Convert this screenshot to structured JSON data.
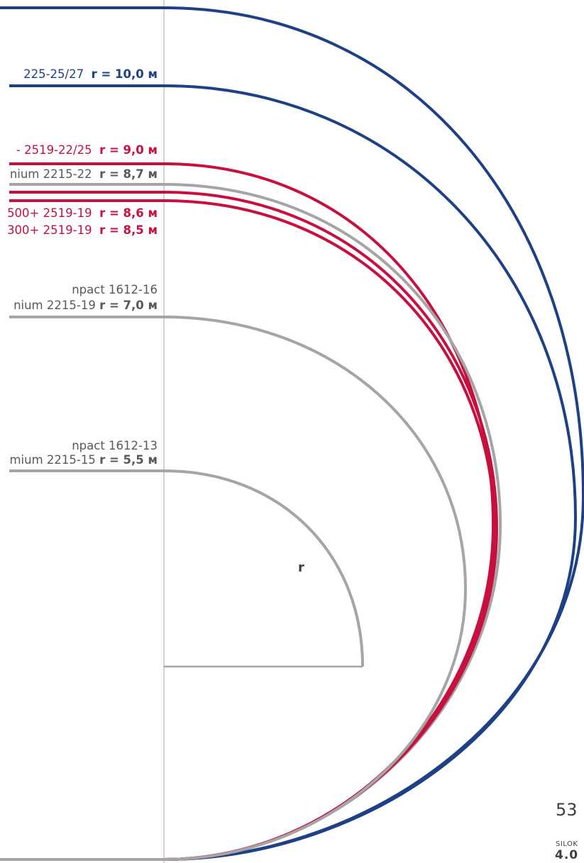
{
  "colors": {
    "navy": "#1e4185",
    "red": "#c8103f",
    "gray": "#a5a5a5",
    "text_gray": "#555a5e"
  },
  "curves": [
    {
      "name": "curve-navy-top",
      "color": "navy",
      "radius_label": ""
    },
    {
      "name": "curve-navy-10-0",
      "color": "navy",
      "radius_label": "10,0 м"
    },
    {
      "name": "curve-red-9-0",
      "color": "red",
      "radius_label": "9,0 м"
    },
    {
      "name": "curve-gray-8-7",
      "color": "gray",
      "radius_label": "8,7 м"
    },
    {
      "name": "curve-red-8-6",
      "color": "red",
      "radius_label": "8,6 м"
    },
    {
      "name": "curve-red-8-5",
      "color": "red",
      "radius_label": "8,5 м"
    },
    {
      "name": "curve-gray-7-0",
      "color": "gray",
      "radius_label": "7,0 м"
    },
    {
      "name": "curve-gray-5-5",
      "color": "gray",
      "radius_label": "5,5 м"
    }
  ],
  "labels": {
    "l1": {
      "model": "225-25/27",
      "prefix": "r = ",
      "value": "10,0 м"
    },
    "l2": {
      "model": "- 2519-22/25",
      "prefix": "r = ",
      "value": "9,0 м"
    },
    "l3": {
      "model": "nium 2215-22",
      "prefix": "r = ",
      "value": "8,7 м"
    },
    "l4": {
      "model": "500+ 2519-19",
      "prefix": "r = ",
      "value": "8,6 м"
    },
    "l5": {
      "model": "300+ 2519-19",
      "prefix": "r = ",
      "value": "8,5 м"
    },
    "l6a": {
      "model": "npact 1612-16"
    },
    "l6b": {
      "model": "nium 2215-19",
      "prefix": "r = ",
      "value": "7,0 м"
    },
    "l7a": {
      "model": "npact 1612-13"
    },
    "l7b": {
      "model": "mium 2215-15",
      "prefix": "r = ",
      "value": "5,5 м"
    }
  },
  "radius_symbol": "r",
  "footer": {
    "page_number": "53",
    "brand": "SILOK",
    "version": "4.0"
  }
}
